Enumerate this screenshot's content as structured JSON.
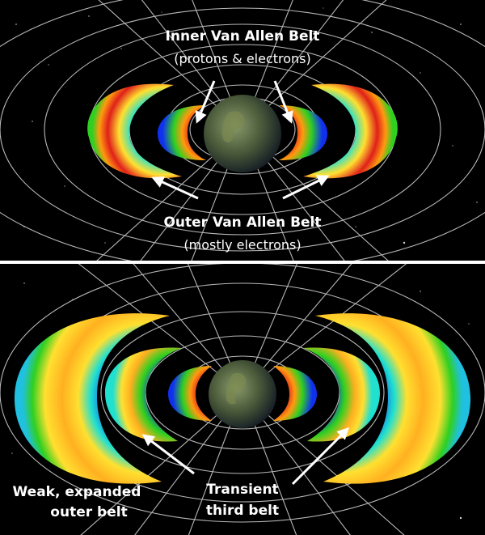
{
  "top_panel": {
    "inner_belt_title": "Inner Van Allen Belt",
    "inner_belt_subtitle": "(protons & electrons)",
    "outer_belt_title": "Outer Van Allen Belt",
    "outer_belt_subtitle": "(mostly electrons)"
  },
  "bottom_panel": {
    "outer_belt_line1": "Weak, expanded",
    "outer_belt_line2": "outer belt",
    "third_belt_line1": "Transient",
    "third_belt_line2": "third belt"
  },
  "colors": {
    "background": "#000000",
    "divider": "#ffffff",
    "field_lines": "#d8d8d8",
    "belt_red": "#e0201a",
    "belt_orange": "#ff9a10",
    "belt_yellow": "#ffe030",
    "belt_green": "#30d020",
    "belt_cyan": "#20e0d0",
    "belt_blue": "#1030f0",
    "earth_land": "#6a7a3a",
    "earth_ocean": "#22334a"
  }
}
